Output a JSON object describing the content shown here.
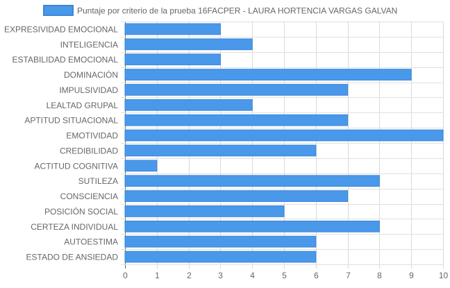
{
  "chart_data": {
    "type": "bar",
    "orientation": "horizontal",
    "categories": [
      "EXPRESIVIDAD EMOCIONAL",
      "INTELIGENCIA",
      "ESTABILIDAD EMOCIONAL",
      "DOMINACIÓN",
      "IMPULSIVIDAD",
      "LEALTAD GRUPAL",
      "APTITUD SITUACIONAL",
      "EMOTIVIDAD",
      "CREDIBILIDAD",
      "ACTITUD COGNITIVA",
      "SUTILEZA",
      "CONSCIENCIA",
      "POSICIÓN SOCIAL",
      "CERTEZA INDIVIDUAL",
      "AUTOESTIMA",
      "ESTADO DE ANSIEDAD"
    ],
    "series": [
      {
        "name": "Puntaje por criterio de la prueba 16FACPER - LAURA HORTENCIA VARGAS GALVAN",
        "values": [
          3,
          4,
          3,
          9,
          7,
          4,
          7,
          10,
          6,
          1,
          8,
          7,
          5,
          8,
          6,
          6
        ],
        "color": "#4a98ea",
        "border_color": "#3a86d8"
      }
    ],
    "xlim": [
      0,
      10
    ],
    "x_ticks": [
      "0",
      "1",
      "2",
      "3",
      "4",
      "5",
      "6",
      "7",
      "8",
      "9",
      "10"
    ],
    "grid": true,
    "legend_position": "top"
  }
}
